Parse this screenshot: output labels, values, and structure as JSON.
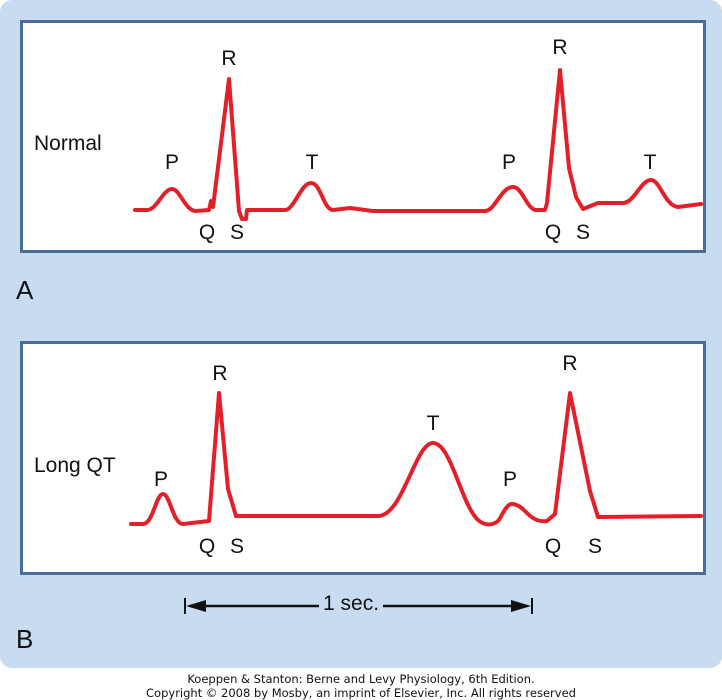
{
  "panels": {
    "a": {
      "letter": "A",
      "condition": "Normal",
      "wave_labels": {
        "p1": "P",
        "r1": "R",
        "q1": "Q",
        "s1": "S",
        "t1": "T",
        "p2": "P",
        "r2": "R",
        "q2": "Q",
        "s2": "S",
        "t2": "T"
      }
    },
    "b": {
      "letter": "B",
      "condition": "Long QT",
      "wave_labels": {
        "p1": "P",
        "r1": "R",
        "q1": "Q",
        "s1": "S",
        "t1": "T",
        "p2": "P",
        "r2": "R",
        "q2": "Q",
        "s2": "S"
      }
    }
  },
  "scale_bar": {
    "label": "1 sec."
  },
  "credit": {
    "line1": "Koeppen & Stanton: Berne and Levy Physiology, 6th Edition.",
    "line2": "Copyright © 2008 by Mosby, an imprint of Elsevier, Inc. All rights reserved"
  },
  "colors": {
    "trace": "#e3202a",
    "panel_border": "#4a6d96",
    "background": "#c7dcf0"
  }
}
